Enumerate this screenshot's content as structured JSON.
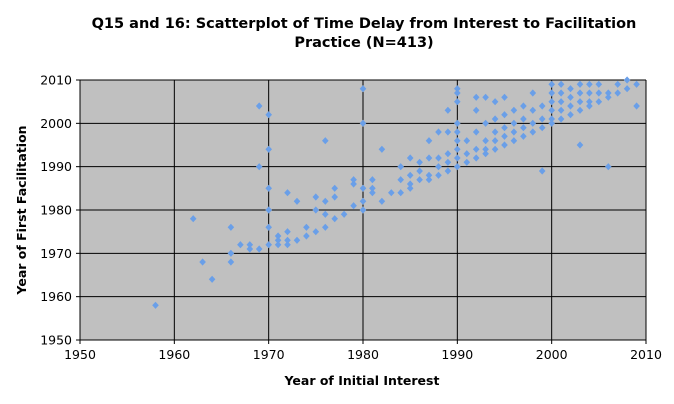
{
  "chart_data": {
    "type": "scatter",
    "title": "Q15 and 16: Scatterplot of Time Delay from Interest to Facilitation Practice (N=413)",
    "title_lines": [
      "Q15 and 16: Scatterplot of Time Delay from Interest to Facilitation",
      "Practice (N=413)"
    ],
    "xlabel": "Year of Initial Interest",
    "ylabel": "Year of First Facilitation",
    "xlim": [
      1950,
      2010
    ],
    "ylim": [
      1950,
      2010
    ],
    "x_ticks": [
      1950,
      1960,
      1970,
      1980,
      1990,
      2000,
      2010
    ],
    "y_ticks": [
      1950,
      1960,
      1970,
      1980,
      1990,
      2000,
      2010
    ],
    "x_tick_labels": [
      "1950",
      "1960",
      "1970",
      "1980",
      "1990",
      "2000",
      "2010"
    ],
    "y_tick_labels": [
      "1950",
      "1960",
      "1970",
      "1980",
      "1990",
      "2000",
      "2010"
    ],
    "grid": true,
    "legend": "none",
    "colors": {
      "plot_background": "#c0c0c0",
      "marker": "#6a9fe8",
      "grid": "#000000"
    },
    "points": [
      [
        1958,
        1958
      ],
      [
        1962,
        1978
      ],
      [
        1963,
        1968
      ],
      [
        1964,
        1964
      ],
      [
        1966,
        1976
      ],
      [
        1966,
        1970
      ],
      [
        1966,
        1968
      ],
      [
        1967,
        1972
      ],
      [
        1968,
        1972
      ],
      [
        1968,
        1971
      ],
      [
        1969,
        2004
      ],
      [
        1969,
        1990
      ],
      [
        1969,
        1971
      ],
      [
        1970,
        2002
      ],
      [
        1970,
        1994
      ],
      [
        1970,
        1985
      ],
      [
        1970,
        1980
      ],
      [
        1970,
        1976
      ],
      [
        1970,
        1972
      ],
      [
        1971,
        1974
      ],
      [
        1971,
        1973
      ],
      [
        1971,
        1972
      ],
      [
        1972,
        1984
      ],
      [
        1972,
        1975
      ],
      [
        1972,
        1973
      ],
      [
        1972,
        1972
      ],
      [
        1973,
        1982
      ],
      [
        1973,
        1973
      ],
      [
        1974,
        1976
      ],
      [
        1974,
        1974
      ],
      [
        1975,
        1983
      ],
      [
        1975,
        1980
      ],
      [
        1975,
        1975
      ],
      [
        1976,
        1996
      ],
      [
        1976,
        1982
      ],
      [
        1976,
        1979
      ],
      [
        1976,
        1976
      ],
      [
        1977,
        1985
      ],
      [
        1977,
        1983
      ],
      [
        1977,
        1978
      ],
      [
        1978,
        1979
      ],
      [
        1979,
        1987
      ],
      [
        1979,
        1986
      ],
      [
        1979,
        1981
      ],
      [
        1980,
        2008
      ],
      [
        1980,
        2000
      ],
      [
        1980,
        1985
      ],
      [
        1980,
        1982
      ],
      [
        1980,
        1980
      ],
      [
        1981,
        1987
      ],
      [
        1981,
        1985
      ],
      [
        1981,
        1984
      ],
      [
        1982,
        1994
      ],
      [
        1982,
        1982
      ],
      [
        1983,
        1984
      ],
      [
        1984,
        1990
      ],
      [
        1984,
        1987
      ],
      [
        1984,
        1984
      ],
      [
        1985,
        1992
      ],
      [
        1985,
        1988
      ],
      [
        1985,
        1986
      ],
      [
        1985,
        1985
      ],
      [
        1986,
        1991
      ],
      [
        1986,
        1989
      ],
      [
        1986,
        1987
      ],
      [
        1987,
        1996
      ],
      [
        1987,
        1992
      ],
      [
        1987,
        1988
      ],
      [
        1987,
        1987
      ],
      [
        1988,
        1998
      ],
      [
        1988,
        1992
      ],
      [
        1988,
        1990
      ],
      [
        1988,
        1988
      ],
      [
        1989,
        2003
      ],
      [
        1989,
        1998
      ],
      [
        1989,
        1993
      ],
      [
        1989,
        1991
      ],
      [
        1989,
        1989
      ],
      [
        1990,
        2008
      ],
      [
        1990,
        2007
      ],
      [
        1990,
        2005
      ],
      [
        1990,
        2000
      ],
      [
        1990,
        1998
      ],
      [
        1990,
        1996
      ],
      [
        1990,
        1994
      ],
      [
        1990,
        1992
      ],
      [
        1990,
        1990
      ],
      [
        1991,
        1996
      ],
      [
        1991,
        1993
      ],
      [
        1991,
        1991
      ],
      [
        1992,
        2006
      ],
      [
        1992,
        2003
      ],
      [
        1992,
        1998
      ],
      [
        1992,
        1994
      ],
      [
        1992,
        1992
      ],
      [
        1993,
        2006
      ],
      [
        1993,
        2000
      ],
      [
        1993,
        1996
      ],
      [
        1993,
        1994
      ],
      [
        1993,
        1993
      ],
      [
        1994,
        2005
      ],
      [
        1994,
        2001
      ],
      [
        1994,
        1998
      ],
      [
        1994,
        1996
      ],
      [
        1994,
        1994
      ],
      [
        1995,
        2006
      ],
      [
        1995,
        2002
      ],
      [
        1995,
        1999
      ],
      [
        1995,
        1997
      ],
      [
        1995,
        1995
      ],
      [
        1996,
        2003
      ],
      [
        1996,
        2000
      ],
      [
        1996,
        1998
      ],
      [
        1996,
        1996
      ],
      [
        1997,
        2004
      ],
      [
        1997,
        2001
      ],
      [
        1997,
        1999
      ],
      [
        1997,
        1997
      ],
      [
        1998,
        2007
      ],
      [
        1998,
        2003
      ],
      [
        1998,
        2000
      ],
      [
        1998,
        1998
      ],
      [
        1999,
        2004
      ],
      [
        1999,
        2001
      ],
      [
        1999,
        1999
      ],
      [
        1999,
        1989
      ],
      [
        2000,
        2009
      ],
      [
        2000,
        2007
      ],
      [
        2000,
        2005
      ],
      [
        2000,
        2003
      ],
      [
        2000,
        2001
      ],
      [
        2000,
        2000
      ],
      [
        2001,
        2009
      ],
      [
        2001,
        2007
      ],
      [
        2001,
        2005
      ],
      [
        2001,
        2003
      ],
      [
        2001,
        2001
      ],
      [
        2002,
        2008
      ],
      [
        2002,
        2006
      ],
      [
        2002,
        2004
      ],
      [
        2002,
        2002
      ],
      [
        2003,
        2009
      ],
      [
        2003,
        2007
      ],
      [
        2003,
        2005
      ],
      [
        2003,
        2003
      ],
      [
        2003,
        1995
      ],
      [
        2004,
        2009
      ],
      [
        2004,
        2007
      ],
      [
        2004,
        2005
      ],
      [
        2004,
        2004
      ],
      [
        2005,
        2009
      ],
      [
        2005,
        2007
      ],
      [
        2005,
        2005
      ],
      [
        2006,
        2007
      ],
      [
        2006,
        2006
      ],
      [
        2006,
        1990
      ],
      [
        2007,
        2009
      ],
      [
        2007,
        2007
      ],
      [
        2008,
        2010
      ],
      [
        2008,
        2008
      ],
      [
        2009,
        2009
      ],
      [
        2009,
        2004
      ]
    ]
  }
}
